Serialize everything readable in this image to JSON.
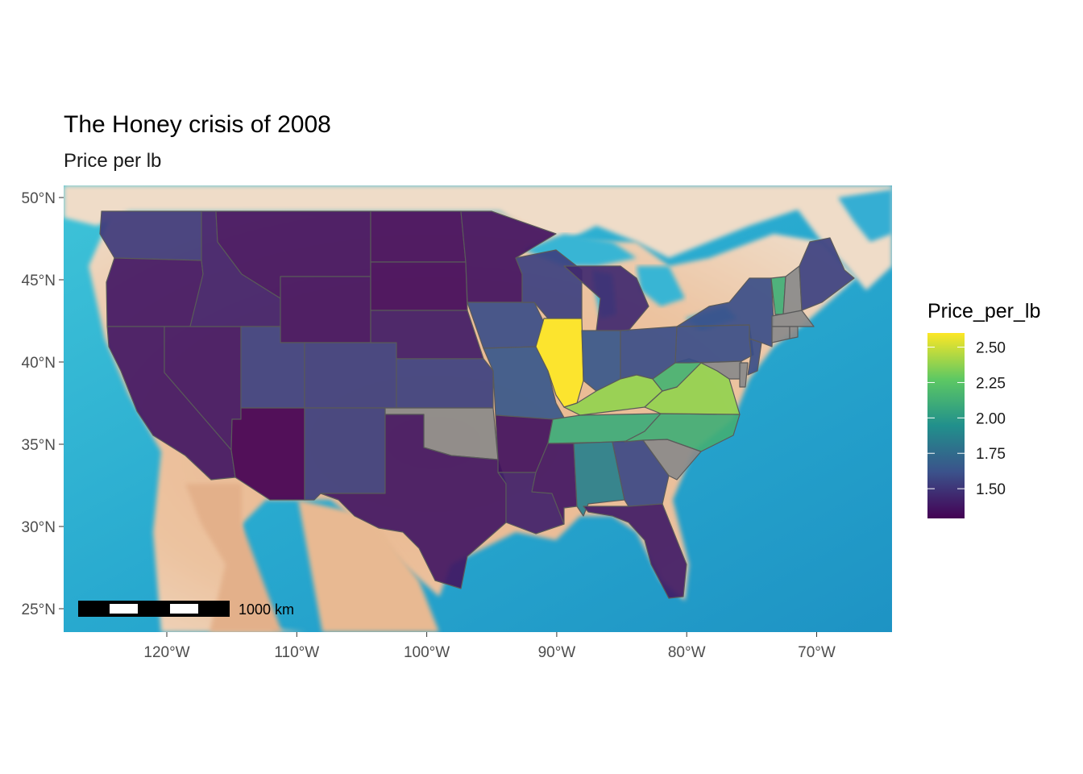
{
  "map": {
    "title": "The Honey crisis of 2008",
    "subtitle": "Price per lb",
    "fill_variable": "Price_per_lb",
    "basemap": "watercolor terrain",
    "projection": "lon/lat",
    "extent": {
      "lon": [
        -127.6,
        -64.1
      ],
      "lat": [
        23.4,
        50.3
      ]
    },
    "lat_ticks": [
      {
        "value": 50,
        "label": "50°N"
      },
      {
        "value": 45,
        "label": "45°N"
      },
      {
        "value": 40,
        "label": "40°N"
      },
      {
        "value": 35,
        "label": "35°N"
      },
      {
        "value": 30,
        "label": "30°N"
      },
      {
        "value": 25,
        "label": "25°N"
      }
    ],
    "lon_ticks": [
      {
        "value": -120,
        "label": "120°W"
      },
      {
        "value": -110,
        "label": "110°W"
      },
      {
        "value": -100,
        "label": "100°W"
      },
      {
        "value": -90,
        "label": "90°W"
      },
      {
        "value": -80,
        "label": "80°W"
      },
      {
        "value": -70,
        "label": "70°W"
      }
    ],
    "legend": {
      "title": "Price_per_lb",
      "min": 1.29,
      "max": 2.6,
      "ticks": [
        {
          "value": 2.5,
          "label": "2.50"
        },
        {
          "value": 2.25,
          "label": "2.25"
        },
        {
          "value": 2.0,
          "label": "2.00"
        },
        {
          "value": 1.75,
          "label": "1.75"
        },
        {
          "value": 1.5,
          "label": "1.50"
        }
      ],
      "palette": [
        "#440154",
        "#3b528b",
        "#21908c",
        "#5dc863",
        "#fde725"
      ],
      "na_color": "#8a8a8a",
      "position": "right"
    },
    "scale_bar": {
      "label": "1000 km",
      "km": 1000
    }
  },
  "chart_data": {
    "type": "choropleth",
    "variable": "Price_per_lb",
    "regions": [
      {
        "name": "Washington",
        "value": 1.52
      },
      {
        "name": "Oregon",
        "value": 1.38
      },
      {
        "name": "California",
        "value": 1.38
      },
      {
        "name": "Nevada",
        "value": 1.38
      },
      {
        "name": "Idaho",
        "value": 1.42
      },
      {
        "name": "Montana",
        "value": 1.36
      },
      {
        "name": "Wyoming",
        "value": 1.36
      },
      {
        "name": "Utah",
        "value": 1.55
      },
      {
        "name": "Arizona",
        "value": 1.29
      },
      {
        "name": "Colorado",
        "value": 1.54
      },
      {
        "name": "New Mexico",
        "value": 1.54
      },
      {
        "name": "North Dakota",
        "value": 1.34
      },
      {
        "name": "South Dakota",
        "value": 1.33
      },
      {
        "name": "Nebraska",
        "value": 1.4
      },
      {
        "name": "Kansas",
        "value": 1.55
      },
      {
        "name": "Oklahoma",
        "value": null
      },
      {
        "name": "Texas",
        "value": 1.38
      },
      {
        "name": "Minnesota",
        "value": 1.36
      },
      {
        "name": "Iowa",
        "value": 1.6
      },
      {
        "name": "Missouri",
        "value": 1.65
      },
      {
        "name": "Arkansas",
        "value": 1.36
      },
      {
        "name": "Louisiana",
        "value": 1.42
      },
      {
        "name": "Wisconsin",
        "value": 1.55
      },
      {
        "name": "Illinois",
        "value": 2.6
      },
      {
        "name": "Michigan",
        "value": 1.45
      },
      {
        "name": "Indiana",
        "value": 1.65
      },
      {
        "name": "Ohio",
        "value": 1.6
      },
      {
        "name": "Kentucky",
        "value": 2.38
      },
      {
        "name": "Tennessee",
        "value": 2.1
      },
      {
        "name": "Mississippi",
        "value": 1.38
      },
      {
        "name": "Alabama",
        "value": 1.86
      },
      {
        "name": "Georgia",
        "value": 1.58
      },
      {
        "name": "Florida",
        "value": 1.4
      },
      {
        "name": "South Carolina",
        "value": null
      },
      {
        "name": "North Carolina",
        "value": 2.12
      },
      {
        "name": "Virginia",
        "value": 2.38
      },
      {
        "name": "West Virginia",
        "value": 2.15
      },
      {
        "name": "Pennsylvania",
        "value": 1.6
      },
      {
        "name": "New York",
        "value": 1.6
      },
      {
        "name": "New Jersey",
        "value": 1.6
      },
      {
        "name": "Maryland",
        "value": null
      },
      {
        "name": "Delaware",
        "value": null
      },
      {
        "name": "Vermont",
        "value": 2.12
      },
      {
        "name": "New Hampshire",
        "value": null
      },
      {
        "name": "Massachusetts",
        "value": null
      },
      {
        "name": "Connecticut",
        "value": null
      },
      {
        "name": "Rhode Island",
        "value": null
      },
      {
        "name": "Maine",
        "value": 1.55
      }
    ]
  }
}
